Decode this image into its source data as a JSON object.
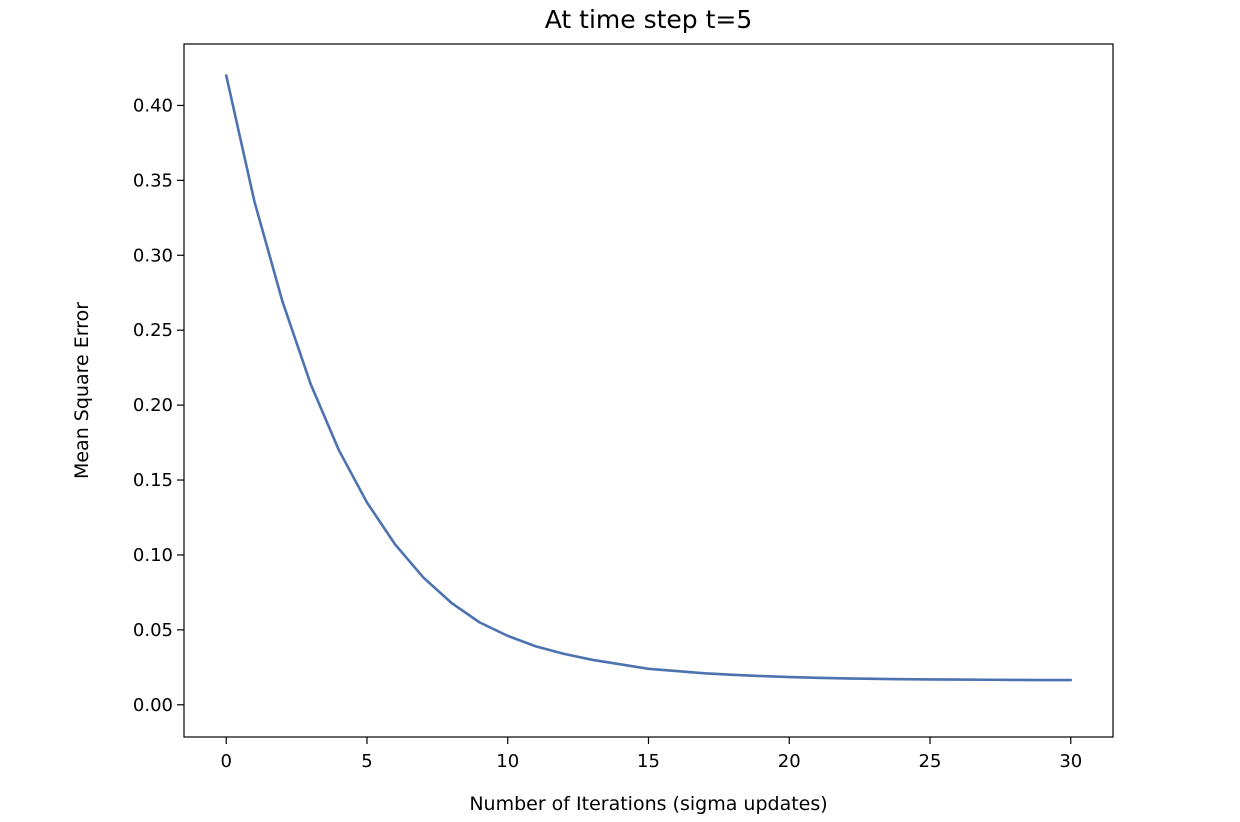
{
  "chart_data": {
    "type": "line",
    "title": "At time step t=5",
    "xlabel": "Number of Iterations (sigma updates)",
    "ylabel": "Mean Square Error",
    "xlim": [
      -1.5,
      31.5
    ],
    "ylim": [
      -0.0215,
      0.441
    ],
    "x_ticks": [
      0,
      5,
      10,
      15,
      20,
      25,
      30
    ],
    "x_tick_labels": [
      "0",
      "5",
      "10",
      "15",
      "20",
      "25",
      "30"
    ],
    "y_ticks": [
      0.0,
      0.05,
      0.1,
      0.15,
      0.2,
      0.25,
      0.3,
      0.35,
      0.4
    ],
    "y_tick_labels": [
      "0.00",
      "0.05",
      "0.10",
      "0.15",
      "0.20",
      "0.25",
      "0.30",
      "0.35",
      "0.40"
    ],
    "grid": false,
    "series": [
      {
        "color": "#4c72b0",
        "x": [
          0,
          1,
          2,
          3,
          4,
          5,
          6,
          7,
          8,
          9,
          10,
          11,
          12,
          13,
          14,
          15,
          16,
          17,
          18,
          19,
          20,
          21,
          22,
          23,
          24,
          25,
          26,
          27,
          28,
          29,
          30
        ],
        "y": [
          0.42,
          0.336,
          0.269,
          0.214,
          0.17,
          0.135,
          0.107,
          0.085,
          0.068,
          0.055,
          0.046,
          0.039,
          0.034,
          0.03,
          0.027,
          0.024,
          0.0225,
          0.021,
          0.02,
          0.0192,
          0.0185,
          0.018,
          0.0176,
          0.0173,
          0.0171,
          0.0169,
          0.0168,
          0.0167,
          0.0166,
          0.0165,
          0.0165
        ]
      }
    ]
  }
}
